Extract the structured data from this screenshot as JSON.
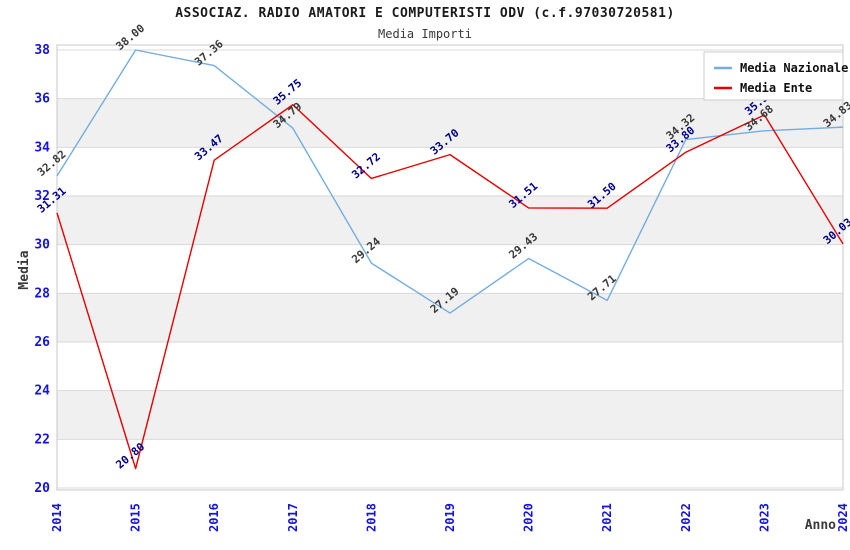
{
  "header": {
    "title": "ASSOCIAZ. RADIO AMATORI E COMPUTERISTI ODV (c.f.97030720581)",
    "subtitle": "Media Importi"
  },
  "chart_data": {
    "type": "line",
    "x": [
      "2014",
      "2015",
      "2016",
      "2017",
      "2018",
      "2019",
      "2020",
      "2021",
      "2022",
      "2023",
      "2024"
    ],
    "xlabel": "Anno",
    "ylabel": "Media",
    "ylim": [
      20,
      38
    ],
    "ytick_step": 2,
    "yticks": [
      20,
      22,
      24,
      26,
      28,
      30,
      32,
      34,
      36,
      38
    ],
    "grid": true,
    "legend_position": "top-right",
    "series": [
      {
        "name": "Media Nazionale",
        "color": "#74ade0",
        "label_color": "#3a3a3a",
        "values": [
          32.82,
          38.0,
          37.36,
          34.79,
          29.24,
          27.19,
          29.43,
          27.71,
          34.32,
          34.68,
          34.83
        ]
      },
      {
        "name": "Media Ente",
        "color": "#e60000",
        "label_color": "#00008b",
        "values": [
          31.31,
          20.8,
          33.47,
          35.75,
          32.72,
          33.7,
          31.51,
          31.5,
          33.8,
          35.33,
          30.03
        ]
      }
    ],
    "style": {
      "tick_color": "#1414dd",
      "axis_title_color": "#3a3a3a",
      "band_color": "#f0f0f0",
      "grid_color": "#d9d9d9",
      "border_color": "#c8c8c8",
      "legend_bg": "#ffffff",
      "legend_border": "#cccccc",
      "legend_text_color": "#111111"
    }
  }
}
